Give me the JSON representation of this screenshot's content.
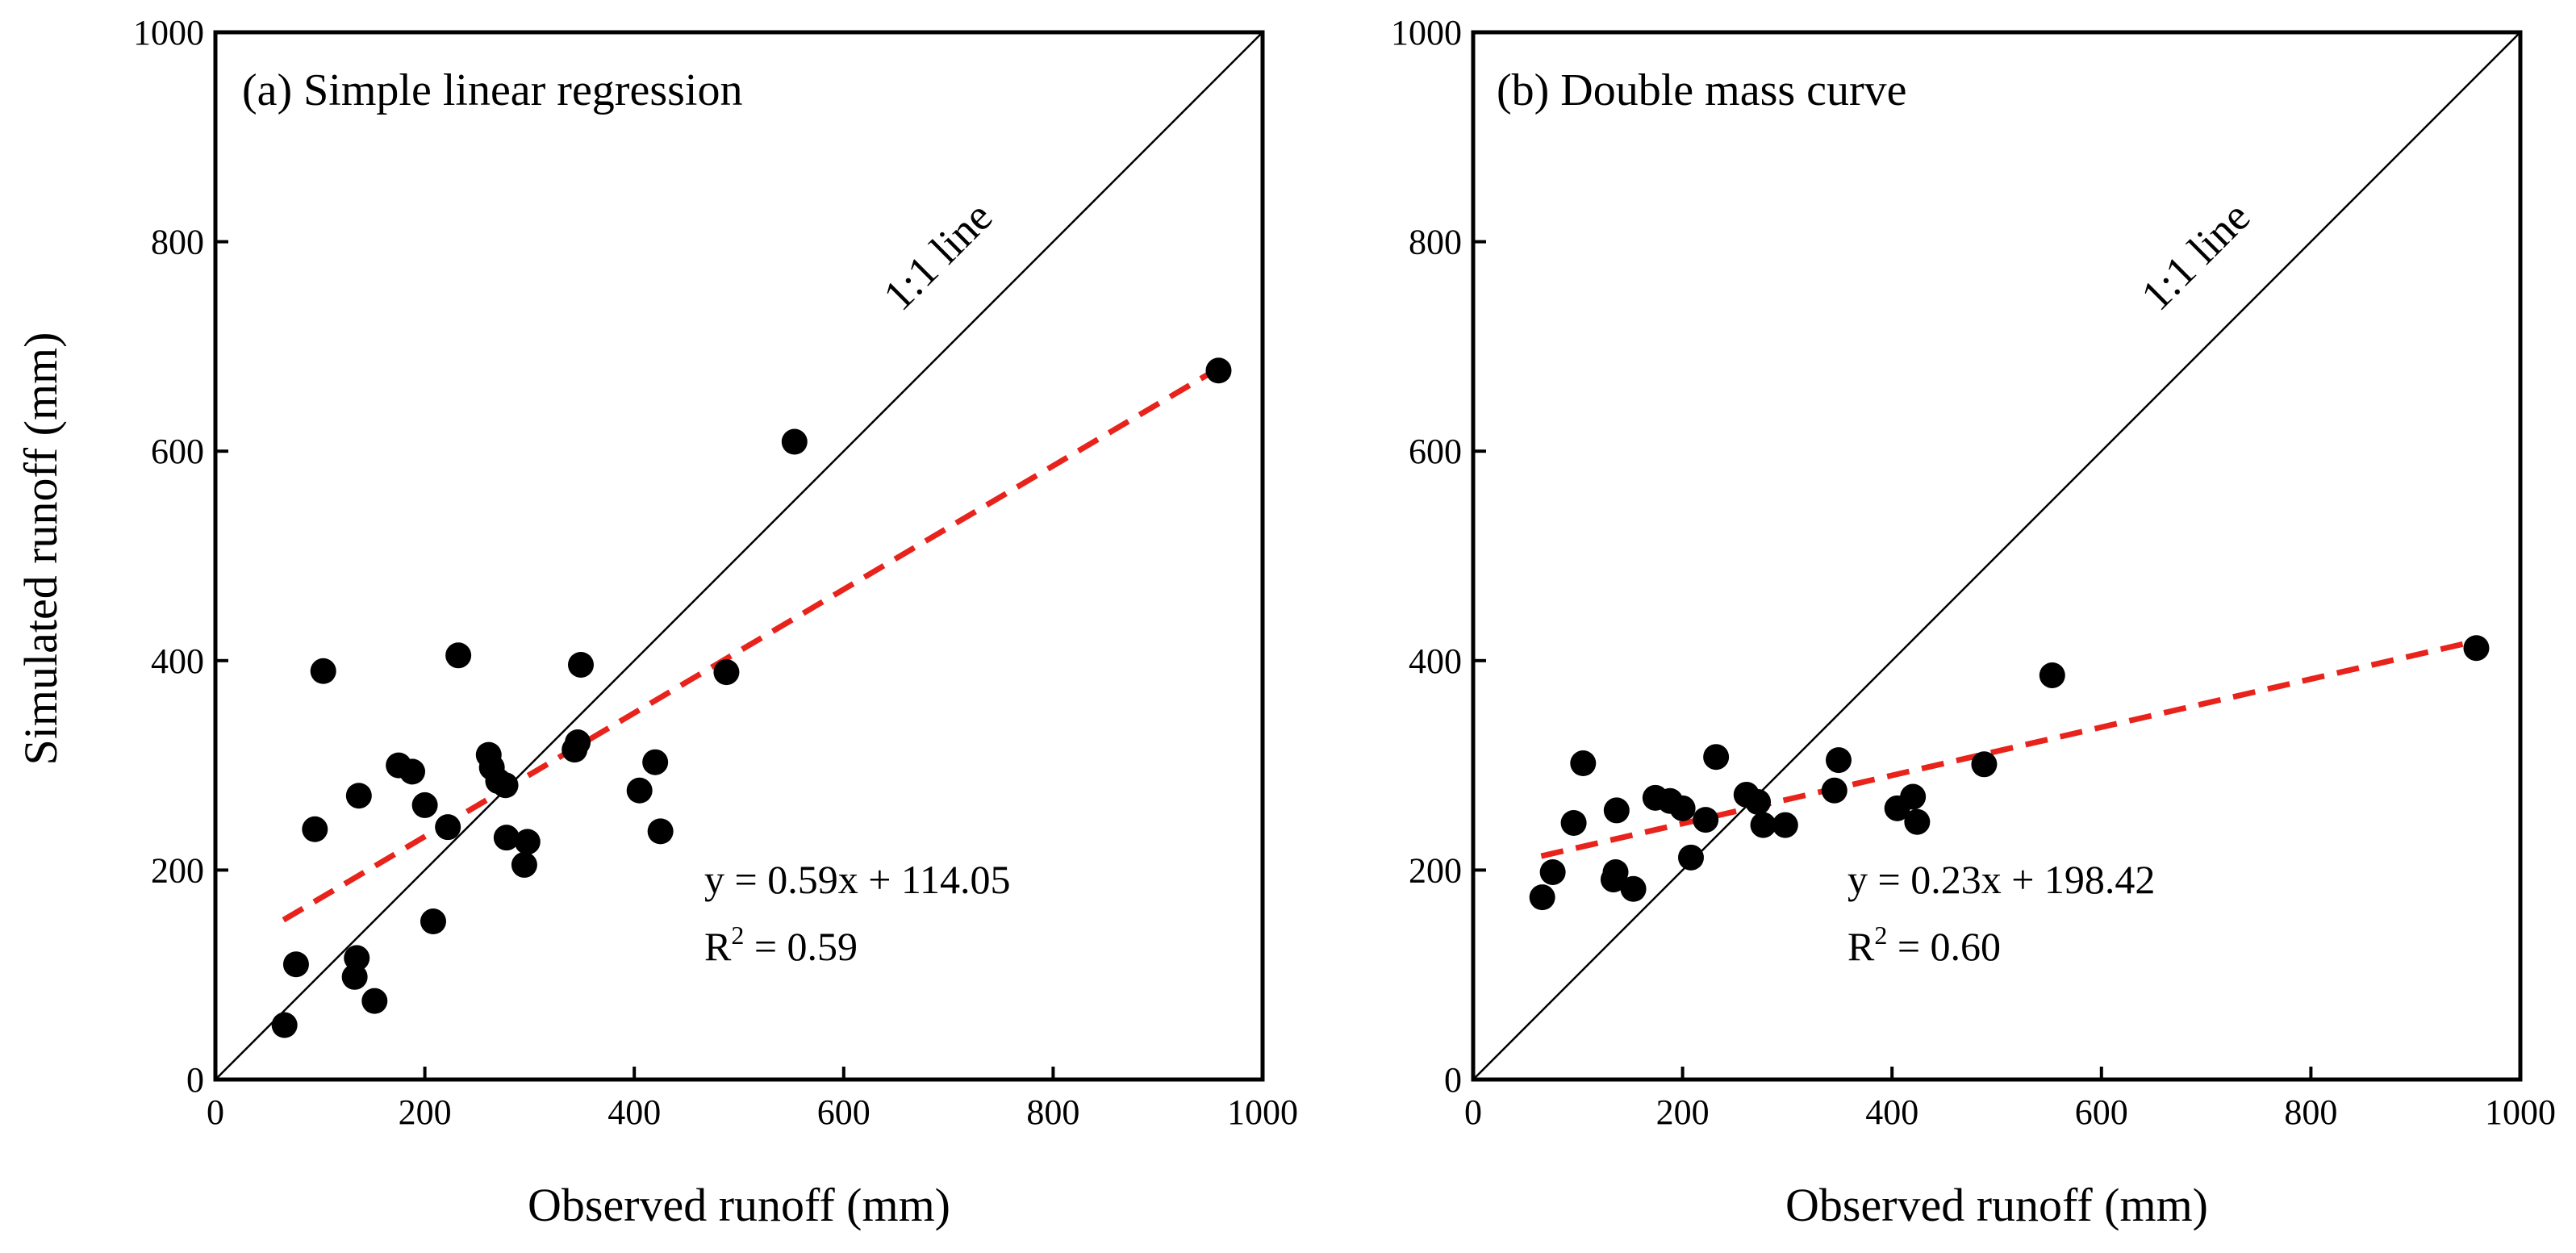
{
  "figure": {
    "ylabel": "Simulated runoff (mm)"
  },
  "chart_data": [
    {
      "type": "scatter",
      "title": "(a) Simple linear regression",
      "xlabel": "Observed runoff (mm)",
      "ylabel": "Simulated runoff (mm)",
      "xlim": [
        0,
        1000
      ],
      "ylim": [
        0,
        1000
      ],
      "xticks": [
        "0",
        "200",
        "400",
        "600",
        "800",
        "1000"
      ],
      "yticks": [
        "0",
        "200",
        "400",
        "600",
        "800",
        "1000"
      ],
      "one_to_one_label": "1:1 line",
      "equation": "y = 0.59x + 114.05",
      "r2_prefix": "R",
      "r2_sup": "2",
      "r2_value": " = 0.59",
      "fit": {
        "slope": 0.59,
        "intercept": 114.05,
        "x_range": [
          65,
          960
        ],
        "color": "#e8231c"
      },
      "points": [
        {
          "x": 66,
          "y": 52
        },
        {
          "x": 77,
          "y": 110
        },
        {
          "x": 95,
          "y": 239
        },
        {
          "x": 103,
          "y": 390
        },
        {
          "x": 133,
          "y": 98
        },
        {
          "x": 135,
          "y": 116
        },
        {
          "x": 137,
          "y": 271
        },
        {
          "x": 152,
          "y": 75
        },
        {
          "x": 175,
          "y": 300
        },
        {
          "x": 188,
          "y": 294
        },
        {
          "x": 200,
          "y": 262
        },
        {
          "x": 208,
          "y": 151
        },
        {
          "x": 222,
          "y": 241
        },
        {
          "x": 232,
          "y": 405
        },
        {
          "x": 261,
          "y": 310
        },
        {
          "x": 264,
          "y": 298
        },
        {
          "x": 270,
          "y": 285
        },
        {
          "x": 277,
          "y": 281
        },
        {
          "x": 278,
          "y": 231
        },
        {
          "x": 295,
          "y": 205
        },
        {
          "x": 298,
          "y": 227
        },
        {
          "x": 343,
          "y": 315
        },
        {
          "x": 346,
          "y": 322
        },
        {
          "x": 349,
          "y": 396
        },
        {
          "x": 405,
          "y": 276
        },
        {
          "x": 420,
          "y": 303
        },
        {
          "x": 425,
          "y": 237
        },
        {
          "x": 488,
          "y": 389
        },
        {
          "x": 553,
          "y": 609
        },
        {
          "x": 958,
          "y": 677
        }
      ]
    },
    {
      "type": "scatter",
      "title": "(b) Double mass curve",
      "xlabel": "Observed runoff (mm)",
      "ylabel": "",
      "xlim": [
        0,
        1000
      ],
      "ylim": [
        0,
        1000
      ],
      "xticks": [
        "0",
        "200",
        "400",
        "600",
        "800",
        "1000"
      ],
      "yticks": [
        "0",
        "200",
        "400",
        "600",
        "800",
        "1000"
      ],
      "one_to_one_label": "1:1 line",
      "equation": "y = 0.23x + 198.42",
      "r2_prefix": "R",
      "r2_sup": "2",
      "r2_value": " = 0.60",
      "fit": {
        "slope": 0.23,
        "intercept": 198.42,
        "x_range": [
          65,
          960
        ],
        "color": "#e8231c"
      },
      "points": [
        {
          "x": 66,
          "y": 174
        },
        {
          "x": 76,
          "y": 198
        },
        {
          "x": 96,
          "y": 245
        },
        {
          "x": 105,
          "y": 302
        },
        {
          "x": 134,
          "y": 191
        },
        {
          "x": 136,
          "y": 198
        },
        {
          "x": 137,
          "y": 257
        },
        {
          "x": 153,
          "y": 182
        },
        {
          "x": 174,
          "y": 269
        },
        {
          "x": 188,
          "y": 266
        },
        {
          "x": 200,
          "y": 259
        },
        {
          "x": 208,
          "y": 212
        },
        {
          "x": 222,
          "y": 248
        },
        {
          "x": 232,
          "y": 308
        },
        {
          "x": 261,
          "y": 272
        },
        {
          "x": 272,
          "y": 265
        },
        {
          "x": 277,
          "y": 243
        },
        {
          "x": 298,
          "y": 243
        },
        {
          "x": 345,
          "y": 276
        },
        {
          "x": 349,
          "y": 305
        },
        {
          "x": 405,
          "y": 259
        },
        {
          "x": 420,
          "y": 270
        },
        {
          "x": 424,
          "y": 246
        },
        {
          "x": 488,
          "y": 301
        },
        {
          "x": 553,
          "y": 386
        },
        {
          "x": 958,
          "y": 412
        }
      ]
    }
  ]
}
